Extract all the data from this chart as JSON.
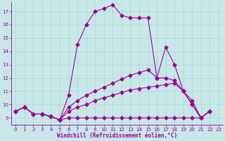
{
  "xlabel": "Windchill (Refroidissement éolien,°C)",
  "background_color": "#c8e8e8",
  "line_color": "#990099",
  "grid_color": "#aad4d4",
  "xlim": [
    -0.5,
    23.5
  ],
  "ylim": [
    8.5,
    17.7
  ],
  "yticks": [
    9,
    10,
    11,
    12,
    13,
    14,
    15,
    16,
    17
  ],
  "xticks": [
    0,
    1,
    2,
    3,
    4,
    5,
    6,
    7,
    8,
    9,
    10,
    11,
    12,
    13,
    14,
    15,
    16,
    17,
    18,
    19,
    20,
    21,
    22,
    23
  ],
  "series": [
    [
      9.5,
      9.8,
      9.3,
      9.3,
      9.1,
      8.85,
      9.0,
      9.0,
      9.0,
      9.0,
      9.0,
      9.0,
      9.0,
      9.0,
      9.0,
      9.0,
      9.0,
      9.0,
      9.0,
      9.0,
      9.0,
      9.0,
      9.5
    ],
    [
      9.5,
      9.8,
      9.3,
      9.3,
      9.1,
      8.85,
      9.5,
      9.8,
      10.0,
      10.3,
      10.5,
      10.7,
      10.9,
      11.1,
      11.2,
      11.3,
      11.4,
      11.5,
      11.6,
      11.0,
      10.0,
      9.0,
      9.5
    ],
    [
      9.5,
      9.8,
      9.3,
      9.3,
      9.1,
      8.85,
      9.8,
      10.3,
      10.7,
      11.0,
      11.3,
      11.6,
      11.9,
      12.2,
      12.4,
      12.6,
      12.0,
      12.0,
      11.8,
      11.0,
      10.3,
      9.0,
      9.5
    ],
    [
      9.5,
      9.8,
      9.3,
      9.3,
      9.1,
      8.85,
      10.7,
      14.5,
      16.0,
      17.0,
      17.2,
      17.5,
      16.7,
      16.5,
      16.5,
      16.5,
      12.0,
      14.3,
      13.0,
      11.0,
      10.0,
      9.0,
      9.5
    ]
  ],
  "marker": "D",
  "markersize": 2.5,
  "linewidth": 0.8
}
